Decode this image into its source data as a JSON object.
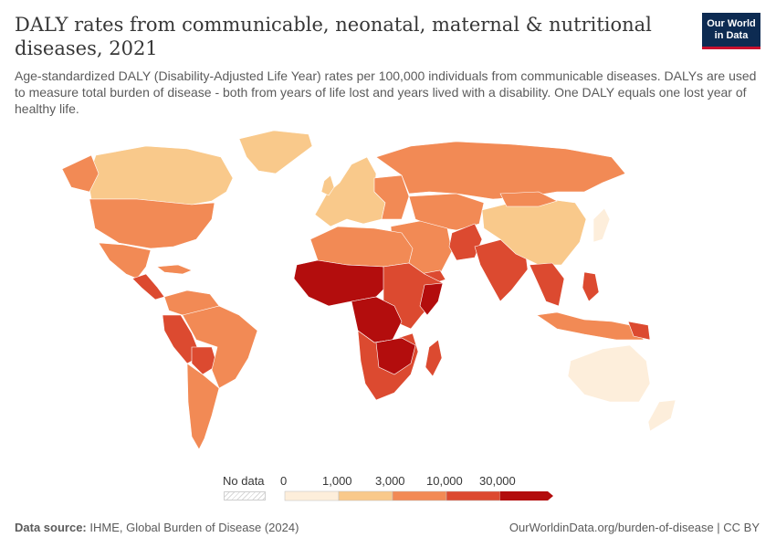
{
  "title": "DALY rates from communicable, neonatal, maternal & nutritional diseases, 2021",
  "subtitle": "Age-standardized DALY (Disability-Adjusted Life Year) rates per 100,000 individuals from communicable diseases. DALYs are used to measure total burden of disease - both from years of life lost and years lived with a disability. One DALY equals one lost year of healthy life.",
  "logo": {
    "line1": "Our World",
    "line2": "in Data"
  },
  "legend": {
    "no_data_label": "No data",
    "ticks": [
      "0",
      "1,000",
      "3,000",
      "10,000",
      "30,000"
    ],
    "colors": [
      "#fdeedb",
      "#f9c98b",
      "#f28a55",
      "#dc4a30",
      "#b30d0d"
    ]
  },
  "footer": {
    "source_label": "Data source:",
    "source_text": "IHME, Global Burden of Disease (2024)",
    "url": "OurWorldinData.org/burden-of-disease | CC BY"
  }
}
